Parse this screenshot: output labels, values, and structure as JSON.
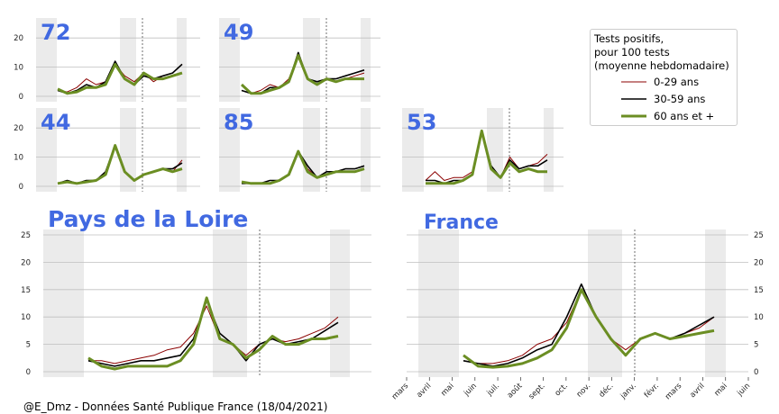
{
  "credit": "@E_Dmz - Données Santé Publique France (18/04/2021)",
  "legend": {
    "title": "Tests positifs,\npour 100 tests\n(moyenne hebdomadaire)",
    "entries": [
      {
        "label": "0-29 ans",
        "color": "#8b0000",
        "width": 1
      },
      {
        "label": "30-59 ans",
        "color": "#000000",
        "width": 1.6
      },
      {
        "label": "60 ans et +",
        "color": "#6b8e23",
        "width": 3
      }
    ]
  },
  "colors": {
    "title": "#4169e1",
    "shade": "#ebebeb",
    "grid": "#bfbfbf"
  },
  "chart_data": [
    {
      "type": "line",
      "title": "72",
      "yticks": [
        0,
        10,
        20
      ],
      "ylim": [
        0,
        25
      ],
      "series": [
        {
          "name": "0-29 ans",
          "values": [
            2,
            1.5,
            3,
            6,
            4,
            5,
            11,
            7,
            5,
            8,
            5,
            7,
            8,
            11
          ]
        },
        {
          "name": "30-59 ans",
          "values": [
            2,
            1,
            2,
            4,
            3,
            5,
            12,
            6,
            4,
            7,
            6,
            7,
            8,
            11
          ]
        },
        {
          "name": "60 ans et +",
          "values": [
            2.5,
            1,
            1.5,
            3,
            3,
            4,
            11,
            6,
            4,
            8,
            6,
            6,
            7,
            8
          ]
        }
      ]
    },
    {
      "type": "line",
      "title": "49",
      "yticks": [
        0,
        10,
        20
      ],
      "ylim": [
        0,
        25
      ],
      "series": [
        {
          "name": "0-29 ans",
          "values": [
            2,
            1,
            2,
            4,
            3,
            6,
            14,
            6,
            4,
            6,
            5,
            6,
            7,
            8
          ]
        },
        {
          "name": "30-59 ans",
          "values": [
            2,
            1,
            1,
            3,
            3,
            5,
            15,
            6,
            5,
            6,
            6,
            7,
            8,
            9
          ]
        },
        {
          "name": "60 ans et +",
          "values": [
            4,
            1,
            1,
            2,
            3,
            5,
            14,
            6,
            4,
            6,
            5,
            6,
            6,
            6
          ]
        }
      ]
    },
    {
      "type": "line",
      "title": "44",
      "yticks": [
        0,
        10,
        20
      ],
      "ylim": [
        0,
        25
      ],
      "series": [
        {
          "name": "0-29 ans",
          "values": [
            1,
            2,
            1,
            2,
            2,
            4,
            14,
            5,
            2,
            4,
            5,
            6,
            5,
            9
          ]
        },
        {
          "name": "30-59 ans",
          "values": [
            1,
            2,
            1,
            2,
            2,
            5,
            14,
            5,
            2,
            4,
            5,
            6,
            6,
            8
          ]
        },
        {
          "name": "60 ans et +",
          "values": [
            1,
            1.5,
            1,
            1.5,
            2,
            4,
            14,
            5,
            2,
            4,
            5,
            6,
            5,
            6
          ]
        }
      ]
    },
    {
      "type": "line",
      "title": "85",
      "yticks": [
        0,
        10,
        20
      ],
      "ylim": [
        0,
        25
      ],
      "series": [
        {
          "name": "0-29 ans",
          "values": [
            1,
            1,
            1,
            2,
            2,
            4,
            12,
            6,
            3,
            5,
            5,
            6,
            6,
            7
          ]
        },
        {
          "name": "30-59 ans",
          "values": [
            1,
            1,
            1,
            2,
            2,
            4,
            12,
            7,
            3,
            5,
            5,
            6,
            6,
            7
          ]
        },
        {
          "name": "60 ans et +",
          "values": [
            1.5,
            1,
            1,
            1,
            2,
            4,
            12,
            5,
            3,
            4,
            5,
            5,
            5,
            6
          ]
        }
      ]
    },
    {
      "type": "line",
      "title": "53",
      "yticks": [
        0,
        10,
        20
      ],
      "ylim": [
        0,
        25
      ],
      "series": [
        {
          "name": "0-29 ans",
          "values": [
            2,
            5,
            2,
            3,
            3,
            5,
            19,
            7,
            3,
            10,
            6,
            7,
            8,
            11
          ]
        },
        {
          "name": "30-59 ans",
          "values": [
            2,
            2,
            1,
            2,
            2,
            4,
            19,
            7,
            3,
            9,
            6,
            7,
            7,
            9
          ]
        },
        {
          "name": "60 ans et +",
          "values": [
            1,
            1,
            1,
            1,
            2,
            4,
            19,
            6,
            3,
            8,
            5,
            6,
            5,
            5
          ]
        }
      ]
    },
    {
      "type": "line",
      "title": "Pays de la Loire",
      "yticks": [
        0,
        5,
        10,
        15,
        20,
        25
      ],
      "ylim": [
        0,
        25
      ],
      "series": [
        {
          "name": "0-29 ans",
          "values": [
            2,
            2,
            1.5,
            2,
            2.5,
            3,
            4,
            4.5,
            7,
            12,
            6,
            5,
            3,
            5,
            6,
            5.5,
            6,
            7,
            8,
            10
          ]
        },
        {
          "name": "30-59 ans",
          "values": [
            2,
            1.5,
            1,
            1.5,
            2,
            2,
            2.5,
            3,
            6,
            13,
            7,
            5,
            2,
            5,
            6,
            5,
            5.5,
            6,
            7.5,
            9
          ]
        },
        {
          "name": "60 ans et +",
          "values": [
            2.5,
            1,
            0.5,
            1,
            1,
            1,
            1,
            2,
            5,
            13.5,
            6,
            5,
            2.5,
            4,
            6.5,
            5,
            5,
            6,
            6,
            6.5
          ]
        }
      ]
    },
    {
      "type": "line",
      "title": "France",
      "yticks": [
        0,
        5,
        10,
        15,
        20,
        25
      ],
      "ylim": [
        0,
        25
      ],
      "xticks": [
        "mars",
        "avril",
        "mai",
        "juin",
        "juil.",
        "août",
        "sept.",
        "oct.",
        "nov.",
        "déc.",
        "janv.",
        "févr.",
        "mars",
        "avril",
        "mai",
        "juin"
      ],
      "series": [
        {
          "name": "0-29 ans",
          "values": [
            2,
            1.5,
            1.5,
            2,
            3,
            5,
            6,
            9,
            15,
            10,
            6,
            4,
            6,
            7,
            6,
            7,
            8,
            10
          ]
        },
        {
          "name": "30-59 ans",
          "values": [
            2,
            1.5,
            1,
            1.5,
            2.5,
            4,
            5,
            10,
            16,
            10,
            6,
            3,
            6,
            7,
            6,
            7,
            8.5,
            10
          ]
        },
        {
          "name": "60 ans et +",
          "values": [
            3,
            1,
            0.8,
            1,
            1.5,
            2.5,
            4,
            8,
            15,
            10,
            6,
            3,
            6,
            7,
            6,
            6.5,
            7,
            7.5
          ]
        }
      ]
    }
  ]
}
